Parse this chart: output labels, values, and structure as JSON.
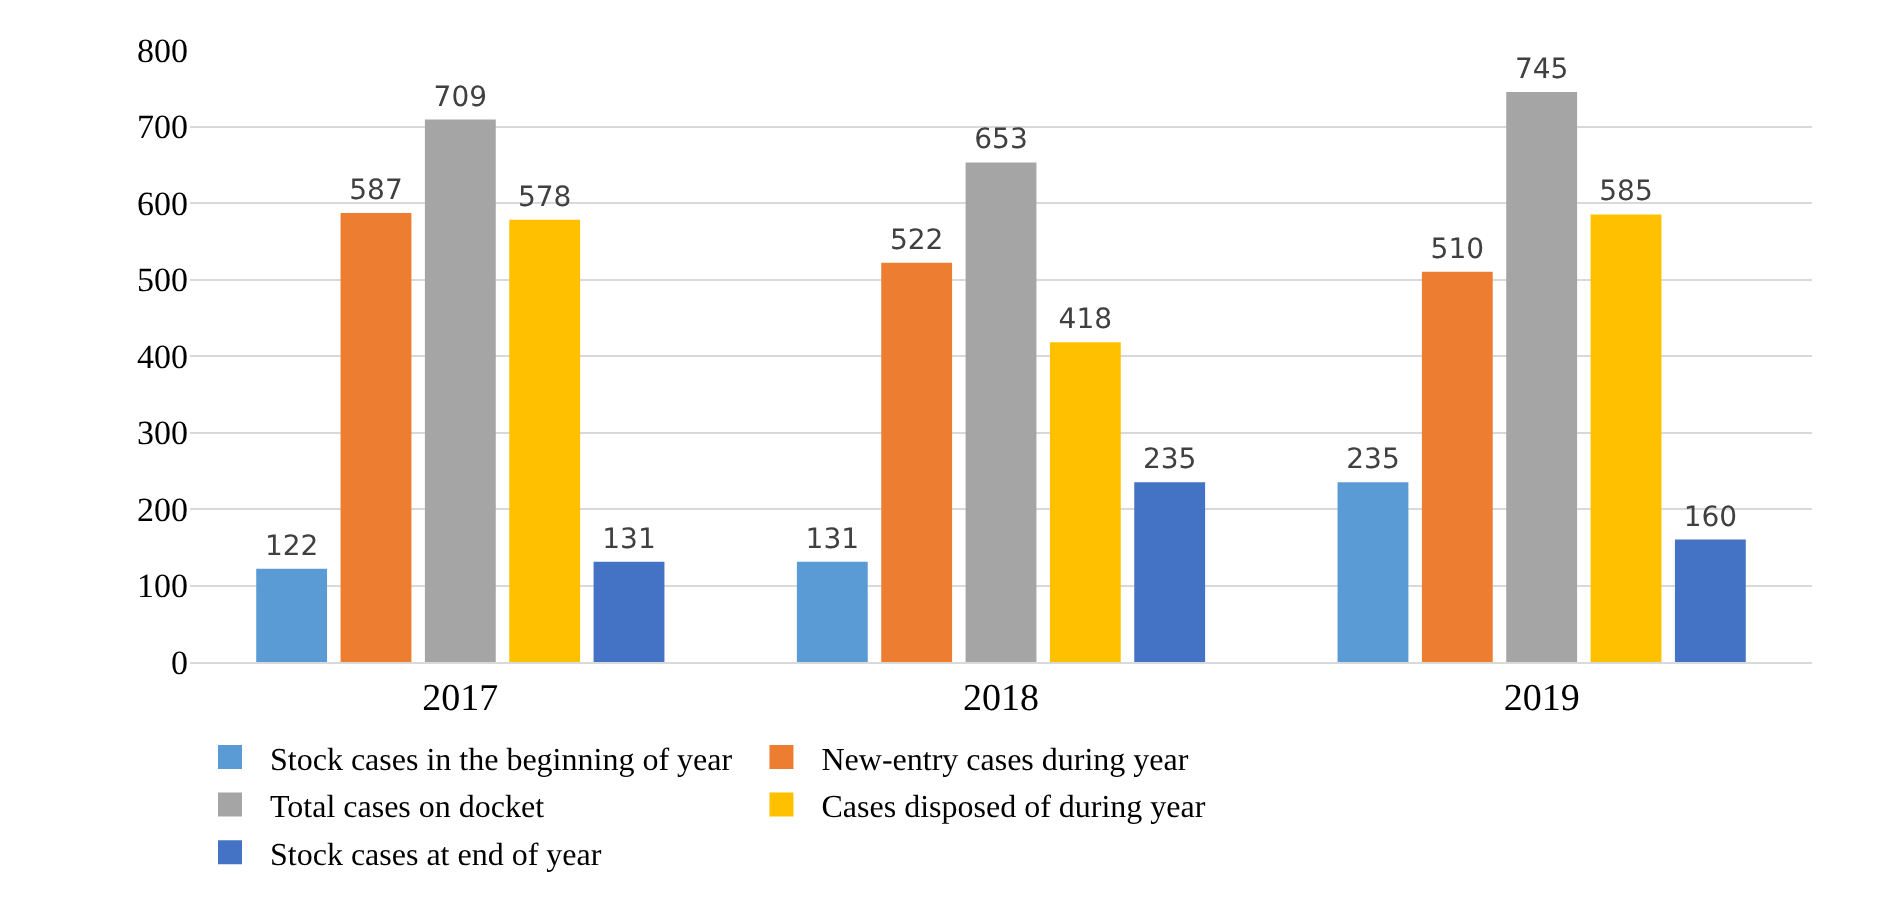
{
  "chart_data": {
    "type": "bar",
    "categories": [
      "2017",
      "2018",
      "2019"
    ],
    "series": [
      {
        "name": "Stock cases in the beginning of year",
        "color": "#5b9bd5",
        "values": [
          122,
          131,
          235
        ]
      },
      {
        "name": "New-entry cases during year",
        "color": "#ed7d31",
        "values": [
          587,
          522,
          510
        ]
      },
      {
        "name": "Total cases on docket",
        "color": "#a5a5a5",
        "values": [
          709,
          653,
          745
        ]
      },
      {
        "name": "Cases disposed of during year",
        "color": "#ffc000",
        "values": [
          578,
          418,
          585
        ]
      },
      {
        "name": "Stock cases at end of year",
        "color": "#4472c4",
        "values": [
          131,
          235,
          160
        ]
      }
    ],
    "ylim": [
      0,
      800
    ],
    "yticks": [
      0,
      100,
      200,
      300,
      400,
      500,
      600,
      700,
      800
    ],
    "grid": "y",
    "legend": "bottom",
    "data_labels": true
  }
}
